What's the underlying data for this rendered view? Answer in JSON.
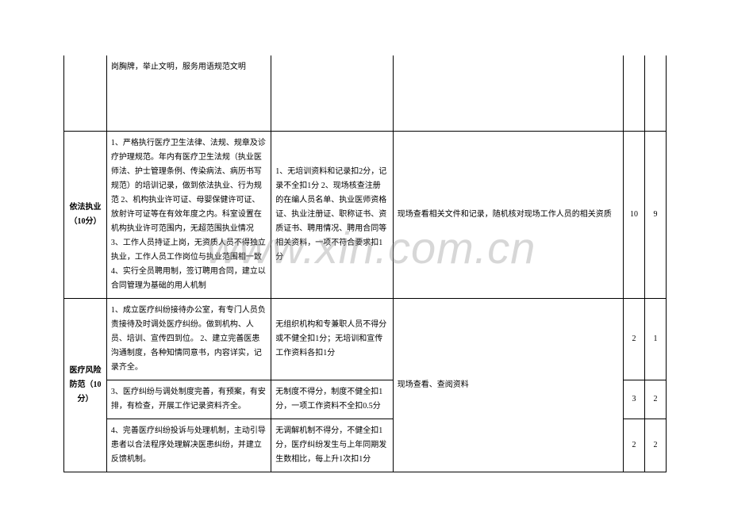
{
  "watermark": "www.xin.com.cn",
  "rows": {
    "r0": {
      "req": "岗胸牌，举止文明，服务用语规范文明",
      "std": "",
      "method": "",
      "s1": "",
      "s2": ""
    },
    "r1": {
      "cat": "依法执业（10分）",
      "req": "1、严格执行医疗卫生法律、法规、规章及诊疗护理规范。年内有医疗卫生法规（执业医师法、护士管理条例、传染病法、病历书写规范）的培训记录，做到依法执业、行为规范\n2、机构执业许可证、母婴保健许可证、放射许可证等在有效年度之内。科室设置在机构执业许可范围内，无超范围执业情况\n3、工作人员持证上岗，无资质人员不得独立执业，工作人员工作岗位与执业范围相一致\n4、实行全员聘用制，签订聘用合同，建立以合同管理为基础的用人机制",
      "std": "1、无培训资料和记录扣2分，记录不全扣1分\n2、现场核查注册的在编人员名单、执业医师资格证、执业注册证、职称证书、资质证书、聘用情况、聘用合同等相关资料，一项不符合要求扣1分",
      "method": "现场查看相关文件和记录，随机核对现场工作人员的相关资质",
      "s1": "10",
      "s2": "9"
    },
    "r2": {
      "cat": "医疗风险防范（10分）",
      "req": "1、成立医疗纠纷接待办公室，有专门人员负责接待及时调处医疗纠纷。做到机构、人员、培训、宣传四到位。\n2、建立完善医患沟通制度，各种知情同意书，内容详实，记录齐全。",
      "std": "无组织机构和专兼职人员不得分或不健全扣1分；无培训和宣传工作资料各扣1分",
      "method": "现场查看、查阅资料",
      "s1": "2",
      "s2": "1"
    },
    "r3": {
      "req": "3、医疗纠纷与调处制度完善，有预案，有安排，有检查，开展工作记录资料齐全。",
      "std": "无制度不得分，制度不健全扣1分，一项工作资料不全扣0.5分",
      "s1": "3",
      "s2": "2"
    },
    "r4": {
      "req": "4、完善医疗纠纷投诉与处理机制，主动引导患者以合法程序处理解决医患纠纷，并建立反馈机制。",
      "std": "无调解机制不得分，不健全扣1分，医疗纠纷发生与上年同期发生数相比，每上升1次扣1分",
      "s1": "2",
      "s2": "2"
    }
  }
}
